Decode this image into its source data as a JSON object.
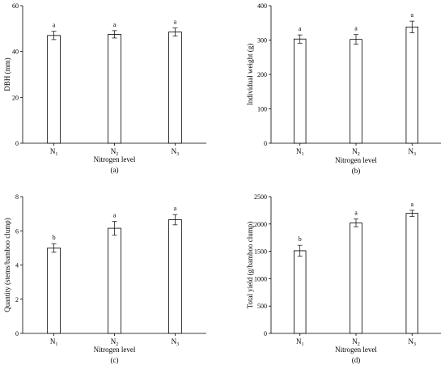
{
  "chart_data": [
    {
      "type": "bar",
      "panel_label": "(a)",
      "categories": [
        "N",
        "N",
        "N"
      ],
      "category_subscripts": [
        "1",
        "2",
        "3"
      ],
      "values": [
        47,
        47.5,
        48.5
      ],
      "errors": [
        1.8,
        1.6,
        1.8
      ],
      "significance": [
        "a",
        "a",
        "a"
      ],
      "xlabel": "Nitrogen level",
      "ylabel": "DBH (mm)",
      "ylim": [
        0,
        60
      ],
      "yticks": [
        0,
        20,
        40,
        60
      ],
      "grid": false,
      "bar_fill": "#ffffff",
      "bar_stroke": "#000000"
    },
    {
      "type": "bar",
      "panel_label": "(b)",
      "categories": [
        "N",
        "N",
        "N"
      ],
      "category_subscripts": [
        "1",
        "2",
        "3"
      ],
      "values": [
        303,
        302,
        338
      ],
      "errors": [
        12,
        14,
        17
      ],
      "significance": [
        "a",
        "a",
        "a"
      ],
      "xlabel": "Nitrogen level",
      "ylabel": "Individual weight (g)",
      "ylim": [
        0,
        400
      ],
      "yticks": [
        0,
        100,
        200,
        300,
        400
      ],
      "grid": false,
      "bar_fill": "#ffffff",
      "bar_stroke": "#000000"
    },
    {
      "type": "bar",
      "panel_label": "(c)",
      "categories": [
        "N",
        "N",
        "N"
      ],
      "category_subscripts": [
        "1",
        "2",
        "3"
      ],
      "values": [
        5.0,
        6.15,
        6.65
      ],
      "errors": [
        0.25,
        0.4,
        0.3
      ],
      "significance": [
        "b",
        "a",
        "a"
      ],
      "xlabel": "Nitrogen level",
      "ylabel": "Quantity (stems/bamboo clump)",
      "ylim": [
        0,
        8
      ],
      "yticks": [
        0,
        2,
        4,
        6,
        8
      ],
      "grid": false,
      "bar_fill": "#ffffff",
      "bar_stroke": "#000000"
    },
    {
      "type": "bar",
      "panel_label": "(d)",
      "categories": [
        "N",
        "N",
        "N"
      ],
      "category_subscripts": [
        "1",
        "2",
        "3"
      ],
      "values": [
        1510,
        2020,
        2195
      ],
      "errors": [
        100,
        70,
        55
      ],
      "significance": [
        "b",
        "a",
        "a"
      ],
      "xlabel": "Nitrogen level",
      "ylabel": "Total yield (g/bamboo clump)",
      "ylim": [
        0,
        2500
      ],
      "yticks": [
        0,
        500,
        1000,
        1500,
        2000,
        2500
      ],
      "grid": false,
      "bar_fill": "#ffffff",
      "bar_stroke": "#000000"
    }
  ]
}
